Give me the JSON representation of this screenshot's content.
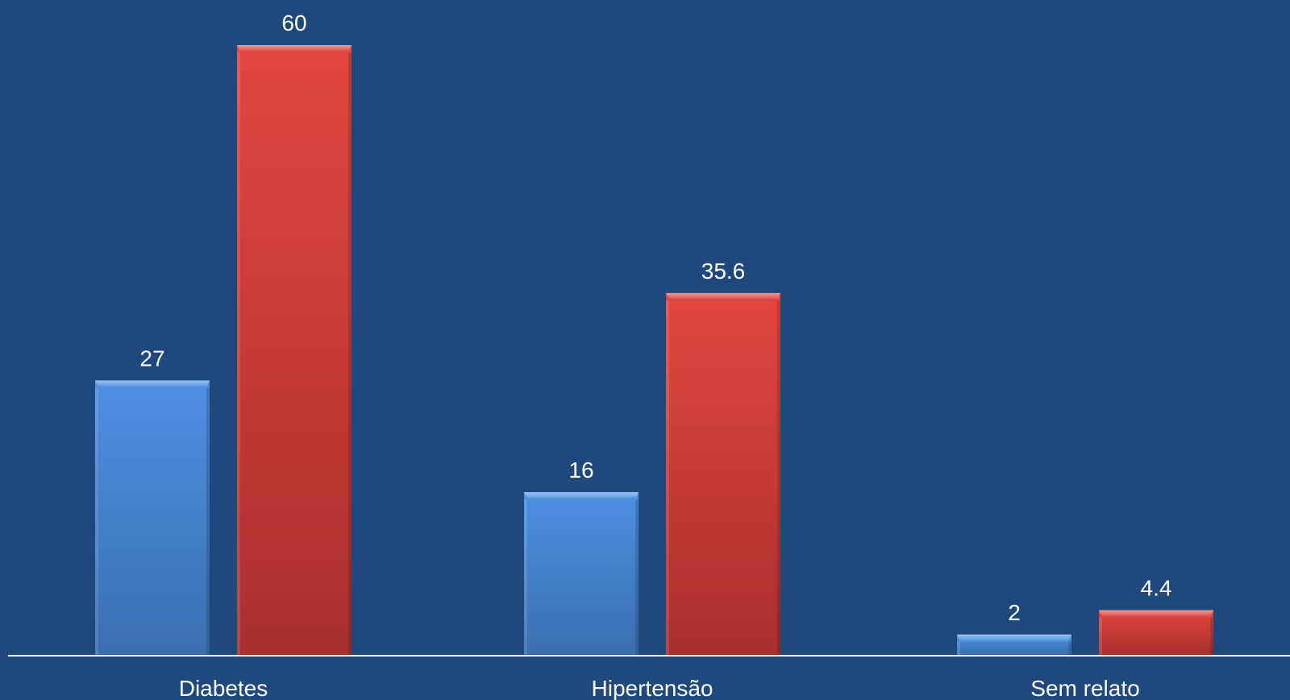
{
  "colors": {
    "background": "#1f497d",
    "series_1": "#4a8ad8",
    "series_2": "#d8403d",
    "axis": "#ffffff",
    "text": "#ffffff"
  },
  "chart_data": {
    "type": "bar",
    "categories": [
      "Diabetes",
      "Hipertensão",
      "Sem relato"
    ],
    "series": [
      {
        "values": [
          27,
          16,
          2
        ],
        "labels": [
          "27",
          "16",
          "2"
        ]
      },
      {
        "values": [
          60,
          35.6,
          4.4
        ],
        "labels": [
          "60",
          "35.6",
          "4.4"
        ]
      }
    ],
    "title": "",
    "xlabel": "",
    "ylabel": "",
    "ylim": [
      0,
      65
    ],
    "grid": false,
    "legend": "none",
    "data_labels": true
  }
}
